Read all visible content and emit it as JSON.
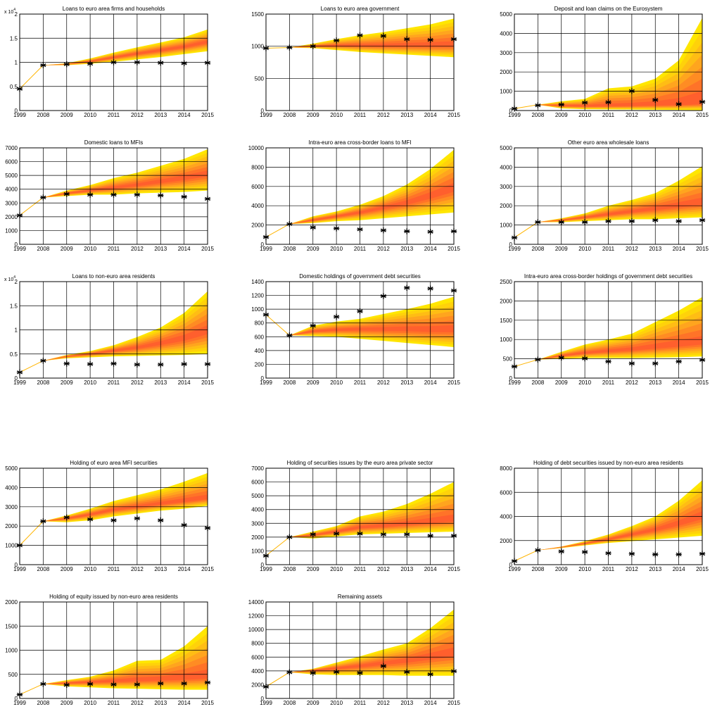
{
  "figure": {
    "x_labels": [
      "1999",
      "2008",
      "2009",
      "2010",
      "2011",
      "2012",
      "2013",
      "2014",
      "2015"
    ],
    "colors": {
      "outer_band": "#ffe600",
      "bands": [
        "#ffe600",
        "#ffd20a",
        "#ffbd14",
        "#ffa51e",
        "#ff8c23",
        "#ff7328",
        "#ff5f2d"
      ],
      "history_line": "#ffb400",
      "grid": "#000000",
      "marker": "#000000"
    }
  },
  "chart_data": [
    {
      "type": "area",
      "title": "Loans to euro area firms and households",
      "ylim": [
        0,
        2
      ],
      "yticks": [
        "0",
        "0.5",
        "1",
        "1.5",
        "2"
      ],
      "multiplier": "x 10^4",
      "history": 0.45,
      "start": 0.94,
      "median": [
        0.94,
        0.96,
        1.02,
        1.1,
        1.18,
        1.25,
        1.32,
        1.42
      ],
      "upper": [
        0.94,
        0.98,
        1.08,
        1.2,
        1.31,
        1.41,
        1.52,
        1.68
      ],
      "lower": [
        0.94,
        0.94,
        0.97,
        1.01,
        1.06,
        1.11,
        1.17,
        1.23
      ],
      "actual": [
        0.45,
        0.94,
        0.96,
        0.97,
        1.0,
        1.0,
        0.99,
        0.98,
        0.99
      ]
    },
    {
      "type": "area",
      "title": "Loans to euro area government",
      "ylim": [
        0,
        1500
      ],
      "yticks": [
        "0",
        "500",
        "1000",
        "1500"
      ],
      "history": 970,
      "start": 980,
      "median": [
        980,
        1000,
        1010,
        1010,
        1010,
        1015,
        1015,
        1020
      ],
      "upper": [
        980,
        1040,
        1110,
        1170,
        1220,
        1280,
        1340,
        1430
      ],
      "lower": [
        980,
        970,
        940,
        910,
        890,
        870,
        850,
        830
      ],
      "actual": [
        970,
        980,
        1000,
        1090,
        1170,
        1160,
        1110,
        1100,
        1110
      ]
    },
    {
      "type": "area",
      "title": "Deposit and loan claims on the Eurosystem",
      "ylim": [
        0,
        5000
      ],
      "yticks": [
        "0",
        "1000",
        "2000",
        "3000",
        "4000",
        "5000"
      ],
      "history": 100,
      "start": 300,
      "median": [
        300,
        250,
        230,
        240,
        260,
        290,
        320,
        380
      ],
      "upper": [
        300,
        480,
        600,
        1150,
        1250,
        1650,
        2600,
        4800
      ],
      "lower": [
        300,
        110,
        70,
        60,
        50,
        40,
        30,
        20
      ],
      "actual": [
        100,
        270,
        310,
        410,
        430,
        1010,
        550,
        330,
        450
      ]
    },
    {
      "type": "area",
      "title": "Domestic loans to MFIs",
      "ylim": [
        0,
        7000
      ],
      "yticks": [
        "0",
        "1000",
        "2000",
        "3000",
        "4000",
        "5000",
        "6000",
        "7000"
      ],
      "history": 2100,
      "start": 3400,
      "median": [
        3400,
        3700,
        3900,
        4100,
        4300,
        4550,
        4800,
        5100
      ],
      "upper": [
        3400,
        3900,
        4300,
        4800,
        5200,
        5700,
        6200,
        6900
      ],
      "lower": [
        3400,
        3500,
        3600,
        3600,
        3700,
        3750,
        3800,
        3900
      ],
      "actual": [
        2100,
        3400,
        3650,
        3600,
        3600,
        3600,
        3550,
        3450,
        3300
      ]
    },
    {
      "type": "area",
      "title": "Intra-euro area cross-border loans to MFI",
      "ylim": [
        0,
        10000
      ],
      "yticks": [
        "0",
        "2000",
        "4000",
        "6000",
        "8000",
        "10000"
      ],
      "history": 750,
      "start": 2100,
      "median": [
        2100,
        2500,
        2900,
        3300,
        3800,
        4300,
        5000,
        5800
      ],
      "upper": [
        2100,
        2900,
        3400,
        4100,
        5000,
        6200,
        7800,
        9800
      ],
      "lower": [
        2100,
        2200,
        2400,
        2500,
        2700,
        2900,
        3100,
        3300
      ],
      "actual": [
        750,
        2100,
        1750,
        1650,
        1550,
        1450,
        1350,
        1300,
        1350
      ]
    },
    {
      "type": "area",
      "title": "Other euro area wholesale loans",
      "ylim": [
        0,
        5000
      ],
      "yticks": [
        "0",
        "1000",
        "2000",
        "3000",
        "4000",
        "5000"
      ],
      "history": 350,
      "start": 1150,
      "median": [
        1150,
        1250,
        1400,
        1550,
        1700,
        1850,
        2000,
        2150
      ],
      "upper": [
        1150,
        1350,
        1600,
        2000,
        2300,
        2650,
        3300,
        4050
      ],
      "lower": [
        1150,
        1150,
        1200,
        1250,
        1300,
        1300,
        1350,
        1400
      ],
      "actual": [
        350,
        1150,
        1150,
        1150,
        1200,
        1200,
        1250,
        1200,
        1250
      ]
    },
    {
      "type": "area",
      "title": "Loans to non-euro area residents",
      "ylim": [
        0,
        2
      ],
      "yticks": [
        "0",
        "0.5",
        "1",
        "1.5",
        "2"
      ],
      "multiplier": "x 10^4",
      "history": 0.12,
      "start": 0.36,
      "median": [
        0.36,
        0.45,
        0.5,
        0.57,
        0.63,
        0.72,
        0.82,
        0.98
      ],
      "upper": [
        0.36,
        0.48,
        0.56,
        0.68,
        0.85,
        1.05,
        1.35,
        1.8
      ],
      "lower": [
        0.36,
        0.41,
        0.43,
        0.45,
        0.46,
        0.47,
        0.48,
        0.5
      ],
      "actual": [
        0.12,
        0.36,
        0.3,
        0.29,
        0.3,
        0.28,
        0.28,
        0.29,
        0.29
      ]
    },
    {
      "type": "area",
      "title": "Domestic holdings of government debt securities",
      "ylim": [
        0,
        1400
      ],
      "yticks": [
        "0",
        "200",
        "400",
        "600",
        "800",
        "1000",
        "1200",
        "1400"
      ],
      "history": 920,
      "start": 620,
      "median": [
        620,
        680,
        700,
        710,
        710,
        710,
        700,
        700
      ],
      "upper": [
        620,
        760,
        820,
        860,
        930,
        1000,
        1080,
        1180
      ],
      "lower": [
        620,
        610,
        600,
        570,
        540,
        510,
        480,
        450
      ],
      "actual": [
        920,
        620,
        760,
        890,
        970,
        1190,
        1310,
        1300,
        1270
      ]
    },
    {
      "type": "area",
      "title": "Intra-euro area cross-border holdings of government debt securities",
      "ylim": [
        0,
        2500
      ],
      "yticks": [
        "0",
        "500",
        "1000",
        "1500",
        "2000",
        "2500"
      ],
      "history": 300,
      "start": 480,
      "median": [
        480,
        580,
        650,
        700,
        740,
        800,
        860,
        920
      ],
      "upper": [
        480,
        680,
        870,
        1000,
        1150,
        1450,
        1750,
        2100
      ],
      "lower": [
        480,
        500,
        520,
        520,
        520,
        530,
        540,
        560
      ],
      "actual": [
        300,
        480,
        530,
        510,
        430,
        380,
        380,
        430,
        470
      ]
    },
    {
      "type": "area",
      "title": "Holding of euro area MFI securities",
      "ylim": [
        0,
        5000
      ],
      "yticks": [
        "0",
        "1000",
        "2000",
        "3000",
        "4000",
        "5000"
      ],
      "history": 1000,
      "start": 2250,
      "median": [
        2250,
        2400,
        2600,
        2850,
        3000,
        3150,
        3300,
        3450
      ],
      "upper": [
        2250,
        2550,
        2900,
        3300,
        3600,
        3900,
        4300,
        4750
      ],
      "lower": [
        2250,
        2200,
        2300,
        2500,
        2650,
        2800,
        2900,
        3050
      ],
      "actual": [
        1000,
        2250,
        2450,
        2350,
        2300,
        2400,
        2300,
        2050,
        1900
      ]
    },
    {
      "type": "area",
      "title": "Holding of securities issues by the euro area private sector",
      "ylim": [
        0,
        7000
      ],
      "yticks": [
        "0",
        "1000",
        "2000",
        "3000",
        "4000",
        "5000",
        "6000",
        "7000"
      ],
      "history": 650,
      "start": 2000,
      "median": [
        2000,
        2150,
        2400,
        2700,
        2800,
        2950,
        3100,
        3250
      ],
      "upper": [
        2000,
        2400,
        2800,
        3500,
        3850,
        4400,
        5150,
        6000
      ],
      "lower": [
        2000,
        1900,
        2050,
        2200,
        2250,
        2300,
        2350,
        2400
      ],
      "actual": [
        650,
        2000,
        2200,
        2250,
        2250,
        2200,
        2200,
        2100,
        2100
      ]
    },
    {
      "type": "area",
      "title": "Holding of debt securities issued by non-euro area residents",
      "ylim": [
        0,
        8000
      ],
      "yticks": [
        "0",
        "2000",
        "4000",
        "6000",
        "8000"
      ],
      "history": 300,
      "start": 1200,
      "median": [
        1200,
        1450,
        1750,
        2100,
        2500,
        2900,
        3400,
        4000
      ],
      "upper": [
        1200,
        1500,
        1950,
        2500,
        3200,
        4000,
        5300,
        7000
      ],
      "lower": [
        1200,
        1380,
        1600,
        1800,
        1950,
        2100,
        2250,
        2400
      ],
      "actual": [
        300,
        1200,
        1100,
        1050,
        950,
        900,
        850,
        850,
        900
      ]
    },
    {
      "type": "area",
      "title": "Holding of equity issued by non-euro area residents",
      "ylim": [
        0,
        2000
      ],
      "yticks": [
        "0",
        "500",
        "1000",
        "1500",
        "2000"
      ],
      "history": 80,
      "start": 300,
      "median": [
        300,
        320,
        340,
        360,
        380,
        400,
        420,
        450
      ],
      "upper": [
        300,
        380,
        450,
        580,
        780,
        800,
        1080,
        1500
      ],
      "lower": [
        300,
        250,
        230,
        210,
        200,
        190,
        180,
        180
      ],
      "actual": [
        80,
        300,
        280,
        300,
        290,
        290,
        310,
        310,
        330
      ]
    },
    {
      "type": "area",
      "title": "Remaining assets",
      "ylim": [
        0,
        14000
      ],
      "yticks": [
        "0",
        "2000",
        "4000",
        "6000",
        "8000",
        "10000",
        "12000",
        "14000"
      ],
      "history": 1700,
      "start": 3800,
      "median": [
        3800,
        4100,
        4400,
        4700,
        5100,
        5500,
        6000,
        6500
      ],
      "upper": [
        3800,
        4300,
        5200,
        6100,
        7100,
        8000,
        10200,
        12900
      ],
      "lower": [
        3800,
        3500,
        3400,
        3400,
        3400,
        3300,
        3300,
        3300
      ],
      "actual": [
        1700,
        3800,
        3700,
        3850,
        3700,
        4700,
        3850,
        3500,
        3950
      ]
    }
  ]
}
